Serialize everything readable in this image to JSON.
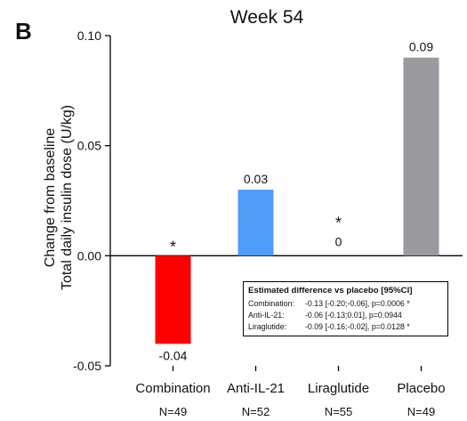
{
  "panel_letter": "B",
  "chart_data": {
    "type": "bar",
    "title": "Week 54",
    "ylabel_lines": [
      "Change from baseline",
      "Total daily insulin dose (U/kg)"
    ],
    "xlabel": "",
    "categories": [
      "Combination",
      "Anti-IL-21",
      "Liraglutide",
      "Placebo"
    ],
    "n_labels": [
      "N=49",
      "N=52",
      "N=55",
      "N=49"
    ],
    "values": [
      -0.04,
      0.03,
      0,
      0.09
    ],
    "value_labels": [
      "-0.04",
      "0.03",
      "0",
      "0.09"
    ],
    "significance_marks": [
      "*",
      "",
      "*",
      ""
    ],
    "colors": [
      "#ff0000",
      "#4f9cf9",
      "#ffffff",
      "#9a9a9f"
    ],
    "ylim": [
      -0.05,
      0.1
    ],
    "yticks": [
      -0.05,
      0.0,
      0.05,
      0.1
    ],
    "ytick_labels": [
      "-0.05",
      "0.00",
      "0.05",
      "0.10"
    ],
    "grid": false,
    "legend": "none"
  },
  "stats_box": {
    "title": "Estimated difference vs placebo [95%CI]",
    "rows": [
      {
        "label": "Combination:",
        "value": "-0.13 [-0.20;-0.06], p=0.0006 *"
      },
      {
        "label": "Anti-IL-21:",
        "value": "-0.06 [-0.13;0.01], p=0.0944"
      },
      {
        "label": "Liraglutide:",
        "value": "-0.09 [-0.16;-0.02], p=0.0128 *"
      }
    ]
  }
}
